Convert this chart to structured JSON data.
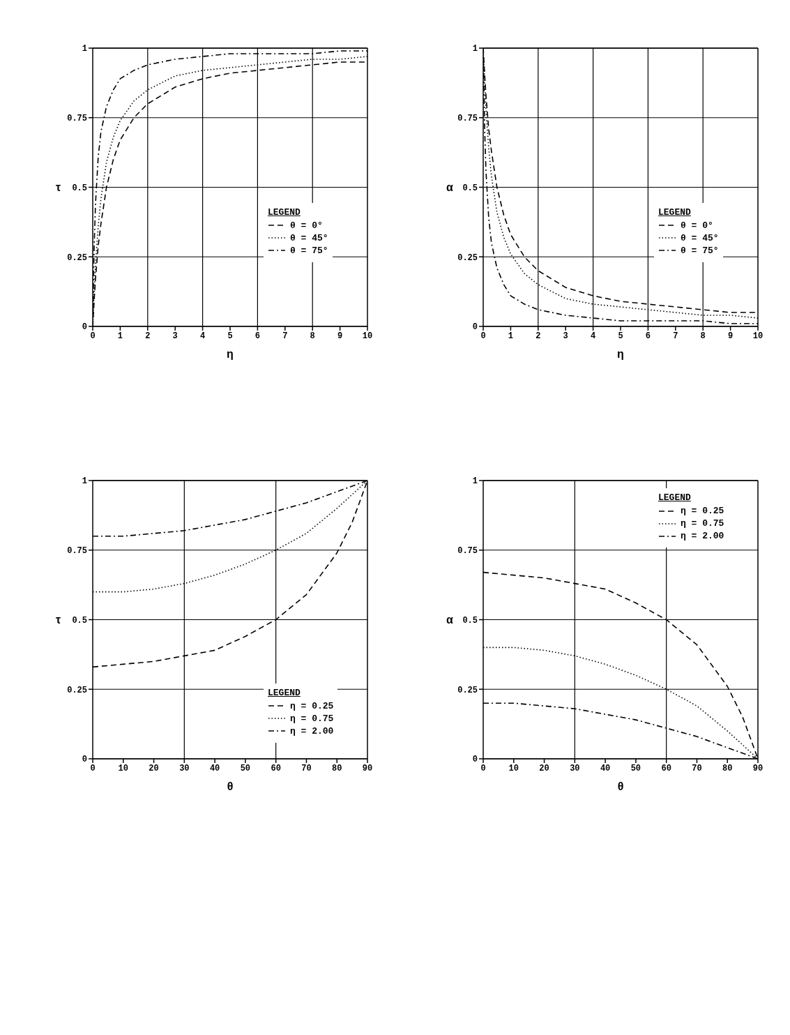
{
  "chart_data": [
    {
      "type": "line",
      "xlabel": "η",
      "ylabel": "τ",
      "legend_title": "LEGEND",
      "legend": "right",
      "grid": "y",
      "marker": "none",
      "x": [
        0,
        0.05,
        0.1,
        0.2,
        0.3,
        0.5,
        0.75,
        1,
        1.5,
        2,
        3,
        4,
        5,
        6,
        7,
        8,
        9,
        10
      ],
      "xlim": [
        0,
        10
      ],
      "xticks": [
        0,
        1,
        2,
        3,
        4,
        5,
        6,
        7,
        8,
        9,
        10
      ],
      "ylim": [
        0,
        1
      ],
      "yticks": [
        0,
        0.25,
        0.5,
        0.75,
        1
      ],
      "ref_lines": [
        {
          "axis": "x",
          "value": 2
        },
        {
          "axis": "x",
          "value": 4
        },
        {
          "axis": "x",
          "value": 6
        },
        {
          "axis": "x",
          "value": 8
        }
      ],
      "series": [
        {
          "name": "θ = 0°",
          "color": "#000000",
          "line_style": "dashed",
          "values": [
            0,
            0.09,
            0.17,
            0.29,
            0.37,
            0.5,
            0.6,
            0.67,
            0.75,
            0.8,
            0.86,
            0.89,
            0.91,
            0.92,
            0.93,
            0.94,
            0.95,
            0.95
          ]
        },
        {
          "name": "θ = 45°",
          "color": "#000000",
          "line_style": "dotted",
          "values": [
            0,
            0.12,
            0.22,
            0.36,
            0.46,
            0.59,
            0.68,
            0.74,
            0.81,
            0.85,
            0.9,
            0.92,
            0.93,
            0.94,
            0.95,
            0.96,
            0.96,
            0.97
          ]
        },
        {
          "name": "θ = 75°",
          "color": "#000000",
          "line_style": "dashdot",
          "values": [
            0,
            0.28,
            0.44,
            0.61,
            0.7,
            0.79,
            0.85,
            0.89,
            0.92,
            0.94,
            0.96,
            0.97,
            0.98,
            0.98,
            0.98,
            0.98,
            0.99,
            0.99
          ]
        }
      ]
    },
    {
      "type": "line",
      "xlabel": "η",
      "ylabel": "α",
      "legend_title": "LEGEND",
      "legend": "right",
      "grid": "y",
      "marker": "none",
      "x": [
        0,
        0.05,
        0.1,
        0.2,
        0.3,
        0.5,
        0.75,
        1,
        1.5,
        2,
        3,
        4,
        5,
        6,
        7,
        8,
        9,
        10
      ],
      "xlim": [
        0,
        10
      ],
      "xticks": [
        0,
        1,
        2,
        3,
        4,
        5,
        6,
        7,
        8,
        9,
        10
      ],
      "ylim": [
        0,
        1
      ],
      "yticks": [
        0,
        0.25,
        0.5,
        0.75,
        1
      ],
      "ref_lines": [
        {
          "axis": "x",
          "value": 2
        },
        {
          "axis": "x",
          "value": 4
        },
        {
          "axis": "x",
          "value": 6
        },
        {
          "axis": "x",
          "value": 8
        }
      ],
      "series": [
        {
          "name": "θ = 0°",
          "color": "#000000",
          "line_style": "dashed",
          "values": [
            1,
            0.91,
            0.83,
            0.71,
            0.63,
            0.5,
            0.4,
            0.33,
            0.25,
            0.2,
            0.14,
            0.11,
            0.09,
            0.08,
            0.07,
            0.06,
            0.05,
            0.05
          ]
        },
        {
          "name": "θ = 45°",
          "color": "#000000",
          "line_style": "dotted",
          "values": [
            1,
            0.88,
            0.78,
            0.64,
            0.54,
            0.41,
            0.32,
            0.26,
            0.19,
            0.15,
            0.1,
            0.08,
            0.07,
            0.06,
            0.05,
            0.04,
            0.04,
            0.03
          ]
        },
        {
          "name": "θ = 75°",
          "color": "#000000",
          "line_style": "dashdot",
          "values": [
            1,
            0.72,
            0.56,
            0.39,
            0.3,
            0.21,
            0.15,
            0.11,
            0.08,
            0.06,
            0.04,
            0.03,
            0.02,
            0.02,
            0.02,
            0.02,
            0.01,
            0.01
          ]
        }
      ]
    },
    {
      "type": "line",
      "xlabel": "θ",
      "ylabel": "τ",
      "legend_title": "LEGEND",
      "legend": "bottom right",
      "grid": "y",
      "marker": "none",
      "x": [
        0,
        10,
        20,
        30,
        40,
        50,
        60,
        70,
        80,
        85,
        90
      ],
      "xlim": [
        0,
        90
      ],
      "xticks": [
        0,
        10,
        20,
        30,
        40,
        50,
        60,
        70,
        80,
        90
      ],
      "ylim": [
        0,
        1
      ],
      "yticks": [
        0,
        0.25,
        0.5,
        0.75,
        1
      ],
      "ref_lines": [
        {
          "axis": "x",
          "value": 30
        },
        {
          "axis": "x",
          "value": 60
        }
      ],
      "series": [
        {
          "name": "η = 0.25",
          "color": "#000000",
          "line_style": "dashed",
          "values": [
            0.33,
            0.34,
            0.35,
            0.37,
            0.39,
            0.44,
            0.5,
            0.59,
            0.74,
            0.85,
            1
          ]
        },
        {
          "name": "η = 0.75",
          "color": "#000000",
          "line_style": "dotted",
          "values": [
            0.6,
            0.6,
            0.61,
            0.63,
            0.66,
            0.7,
            0.75,
            0.81,
            0.9,
            0.95,
            1
          ]
        },
        {
          "name": "η = 2.00",
          "color": "#000000",
          "line_style": "dashdot",
          "values": [
            0.8,
            0.8,
            0.81,
            0.82,
            0.84,
            0.86,
            0.89,
            0.92,
            0.96,
            0.98,
            1
          ]
        }
      ]
    },
    {
      "type": "line",
      "xlabel": "θ",
      "ylabel": "α",
      "legend_title": "LEGEND",
      "legend": "top right",
      "grid": "y",
      "marker": "none",
      "x": [
        0,
        10,
        20,
        30,
        40,
        50,
        60,
        70,
        80,
        85,
        90
      ],
      "xlim": [
        0,
        90
      ],
      "xticks": [
        0,
        10,
        20,
        30,
        40,
        50,
        60,
        70,
        80,
        90
      ],
      "ylim": [
        0,
        1
      ],
      "yticks": [
        0,
        0.25,
        0.5,
        0.75,
        1
      ],
      "ref_lines": [
        {
          "axis": "x",
          "value": 30
        },
        {
          "axis": "x",
          "value": 60
        }
      ],
      "series": [
        {
          "name": "η = 0.25",
          "color": "#000000",
          "line_style": "dashed",
          "values": [
            0.67,
            0.66,
            0.65,
            0.63,
            0.61,
            0.56,
            0.5,
            0.41,
            0.26,
            0.15,
            0
          ]
        },
        {
          "name": "η = 0.75",
          "color": "#000000",
          "line_style": "dotted",
          "values": [
            0.4,
            0.4,
            0.39,
            0.37,
            0.34,
            0.3,
            0.25,
            0.19,
            0.1,
            0.05,
            0
          ]
        },
        {
          "name": "η = 2.00",
          "color": "#000000",
          "line_style": "dashdot",
          "values": [
            0.2,
            0.2,
            0.19,
            0.18,
            0.16,
            0.14,
            0.11,
            0.08,
            0.04,
            0.02,
            0
          ]
        }
      ]
    }
  ]
}
